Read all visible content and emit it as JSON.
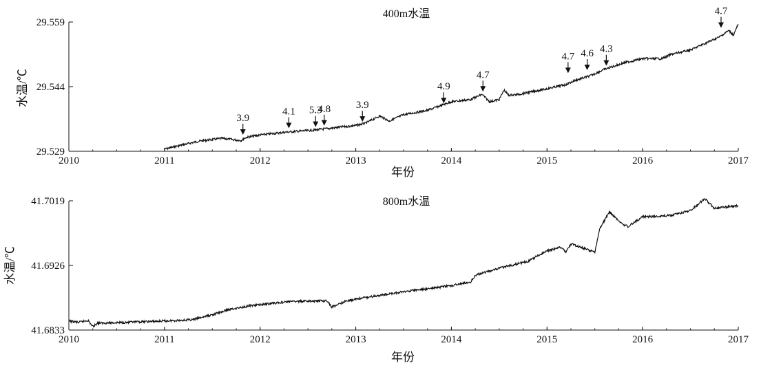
{
  "chart_data": [
    {
      "type": "line",
      "title": "400m水温",
      "xlabel": "年份",
      "ylabel": "水温/℃",
      "xlim": [
        2010,
        2017
      ],
      "ylim": [
        29.529,
        29.559
      ],
      "x_ticks": [
        "2010",
        "2011",
        "2012",
        "2013",
        "2014",
        "2015",
        "2016",
        "2017"
      ],
      "y_ticks": [
        "29.529",
        "29.544",
        "29.559"
      ],
      "grid": false,
      "series": [
        {
          "x": [
            2011.0,
            2011.15,
            2011.35,
            2011.6,
            2011.8,
            2011.85,
            2012.0,
            2012.3,
            2012.5,
            2012.6,
            2012.8,
            2013.0,
            2013.1,
            2013.25,
            2013.35,
            2013.5,
            2013.75,
            2014.0,
            2014.2,
            2014.32,
            2014.4,
            2014.5,
            2014.55,
            2014.6,
            2014.7,
            2015.0,
            2015.2,
            2015.3,
            2015.45,
            2015.6,
            2015.8,
            2016.0,
            2016.2,
            2016.3,
            2016.5,
            2016.7,
            2016.8,
            2016.9,
            2016.95,
            2017.0
          ],
          "y": [
            29.5295,
            29.5303,
            29.5313,
            29.532,
            29.5315,
            29.5322,
            29.5328,
            29.5335,
            29.5338,
            29.534,
            29.5345,
            29.535,
            29.5355,
            29.5372,
            29.536,
            29.5375,
            29.5385,
            29.5405,
            29.541,
            29.5422,
            29.5405,
            29.541,
            29.5432,
            29.542,
            29.5422,
            29.5435,
            29.5445,
            29.5455,
            29.5465,
            29.548,
            29.5495,
            29.5505,
            29.5505,
            29.5515,
            29.5525,
            29.5545,
            29.5555,
            29.557,
            29.556,
            29.5585
          ]
        }
      ],
      "annotations": [
        {
          "x": 2011.82,
          "y": 29.5322,
          "label": "3.9"
        },
        {
          "x": 2012.3,
          "y": 29.5337,
          "label": "4.1"
        },
        {
          "x": 2012.58,
          "y": 29.534,
          "label": "5.3"
        },
        {
          "x": 2012.67,
          "y": 29.5343,
          "label": "4.8"
        },
        {
          "x": 2013.07,
          "y": 29.5352,
          "label": "3.9"
        },
        {
          "x": 2013.92,
          "y": 29.5395,
          "label": "4.9"
        },
        {
          "x": 2014.33,
          "y": 29.5422,
          "label": "4.7"
        },
        {
          "x": 2015.22,
          "y": 29.5465,
          "label": "4.7"
        },
        {
          "x": 2015.42,
          "y": 29.5472,
          "label": "4.6"
        },
        {
          "x": 2015.62,
          "y": 29.5482,
          "label": "4.3"
        },
        {
          "x": 2016.82,
          "y": 29.557,
          "label": "4.7"
        }
      ]
    },
    {
      "type": "line",
      "title": "800m水温",
      "xlabel": "年份",
      "ylabel": "水温/℃",
      "xlim": [
        2010,
        2017
      ],
      "ylim": [
        41.6833,
        41.7019
      ],
      "x_ticks": [
        "2010",
        "2011",
        "2012",
        "2013",
        "2014",
        "2015",
        "2016",
        "2017"
      ],
      "y_ticks": [
        "41.6833",
        "41.6926",
        "41.7019"
      ],
      "grid": false,
      "series": [
        {
          "x": [
            2010.0,
            2010.1,
            2010.2,
            2010.25,
            2010.3,
            2010.6,
            2011.0,
            2011.3,
            2011.35,
            2011.5,
            2011.62,
            2011.65,
            2011.9,
            2012.3,
            2012.7,
            2012.75,
            2012.9,
            2013.2,
            2013.6,
            2013.8,
            2014.0,
            2014.2,
            2014.25,
            2014.5,
            2014.8,
            2015.0,
            2015.15,
            2015.2,
            2015.25,
            2015.5,
            2015.55,
            2015.65,
            2015.8,
            2015.85,
            2016.0,
            2016.3,
            2016.5,
            2016.65,
            2016.75,
            2017.0
          ],
          "y": [
            41.6846,
            41.6844,
            41.6847,
            41.6838,
            41.6843,
            41.6844,
            41.6846,
            41.6848,
            41.685,
            41.6855,
            41.686,
            41.6862,
            41.6868,
            41.6874,
            41.6875,
            41.6866,
            41.6875,
            41.6882,
            41.689,
            41.6893,
            41.6897,
            41.6902,
            41.6912,
            41.6922,
            41.6932,
            41.6947,
            41.6952,
            41.6945,
            41.6957,
            41.6945,
            41.6978,
            41.7003,
            41.6984,
            41.6982,
            41.6996,
            41.6998,
            41.7005,
            41.7022,
            41.7008,
            41.7012
          ]
        }
      ]
    }
  ]
}
